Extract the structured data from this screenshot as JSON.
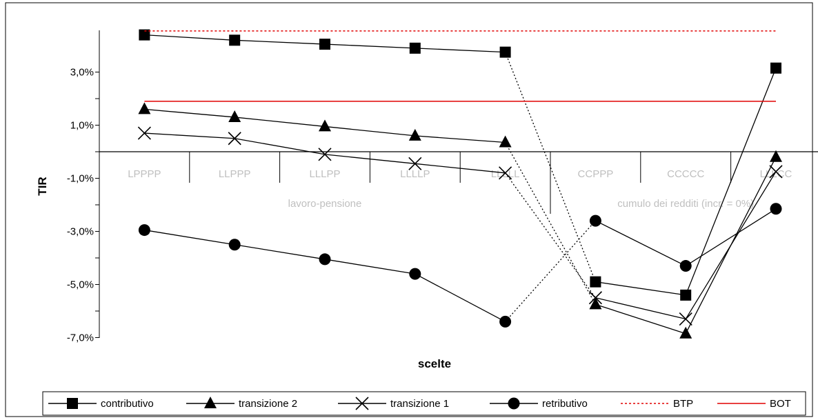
{
  "chart_data": {
    "type": "line",
    "xlabel": "scelte",
    "ylabel": "TIR",
    "categories": [
      "LPPPP",
      "LLPPP",
      "LLLPP",
      "LLLLP",
      "LLLLL",
      "CCPPP",
      "CCCCC",
      "LLLCC"
    ],
    "groups": [
      {
        "label": "lavoro-pensione",
        "span": [
          0,
          4
        ]
      },
      {
        "label": "cumulo dei redditi (incr. = 0%)",
        "span": [
          5,
          7
        ]
      }
    ],
    "yticks": [
      {
        "value": 3,
        "label": "3,0%"
      },
      {
        "value": 1,
        "label": "1,0%"
      },
      {
        "value": -1,
        "label": "-1,0%"
      },
      {
        "value": -3,
        "label": "-3,0%"
      },
      {
        "value": -5,
        "label": "-5,0%"
      },
      {
        "value": -7,
        "label": "-7,0%"
      }
    ],
    "ylim": [
      -7.1,
      4.8
    ],
    "series": [
      {
        "name": "contributivo",
        "marker": "square",
        "values": [
          4.4,
          4.2,
          4.05,
          3.9,
          3.75,
          -4.9,
          -5.4,
          3.15
        ]
      },
      {
        "name": "transizione 2",
        "marker": "triangle",
        "values": [
          1.6,
          1.3,
          0.95,
          0.6,
          0.35,
          -5.75,
          -6.85,
          -0.2
        ]
      },
      {
        "name": "transizione 1",
        "marker": "x",
        "values": [
          0.7,
          0.5,
          -0.1,
          -0.45,
          -0.8,
          -5.5,
          -6.3,
          -0.75
        ]
      },
      {
        "name": "retributivo",
        "marker": "circle",
        "values": [
          -2.95,
          -3.5,
          -4.05,
          -4.6,
          -6.4,
          -2.6,
          -4.3,
          -2.15
        ]
      },
      {
        "name": "BTP",
        "style": "dotted",
        "color": "#e00000",
        "value": 4.55
      },
      {
        "name": "BOT",
        "style": "solid",
        "color": "#e00000",
        "value": 1.9
      }
    ],
    "legend_position": "bottom"
  }
}
